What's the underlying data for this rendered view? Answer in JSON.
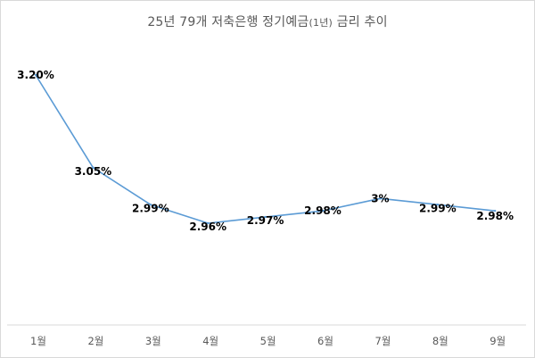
{
  "chart_data": {
    "type": "line",
    "title": "25년 79개 저축은행 정기예금",
    "title_suffix": "(1년)",
    "title_tail": " 금리 추이",
    "categories": [
      "1월",
      "2월",
      "3월",
      "4월",
      "5월",
      "6월",
      "7월",
      "8월",
      "9월"
    ],
    "series": [
      {
        "values": [
          3.2,
          3.05,
          2.99,
          2.96,
          2.97,
          2.98,
          3.0,
          2.99,
          2.98
        ],
        "labels": [
          "3.20%",
          "3.05%",
          "2.99%",
          "2.96%",
          "2.97%",
          "2.98%",
          "3%",
          "2.99%",
          "2.98%"
        ]
      }
    ],
    "xlabel": "",
    "ylabel": "",
    "y_axis_visible": false,
    "grid": false,
    "colors": {
      "line": "#5b9bd5",
      "axis": "#d9d9d9",
      "labels": "#000000",
      "ticks": "#595959"
    }
  }
}
